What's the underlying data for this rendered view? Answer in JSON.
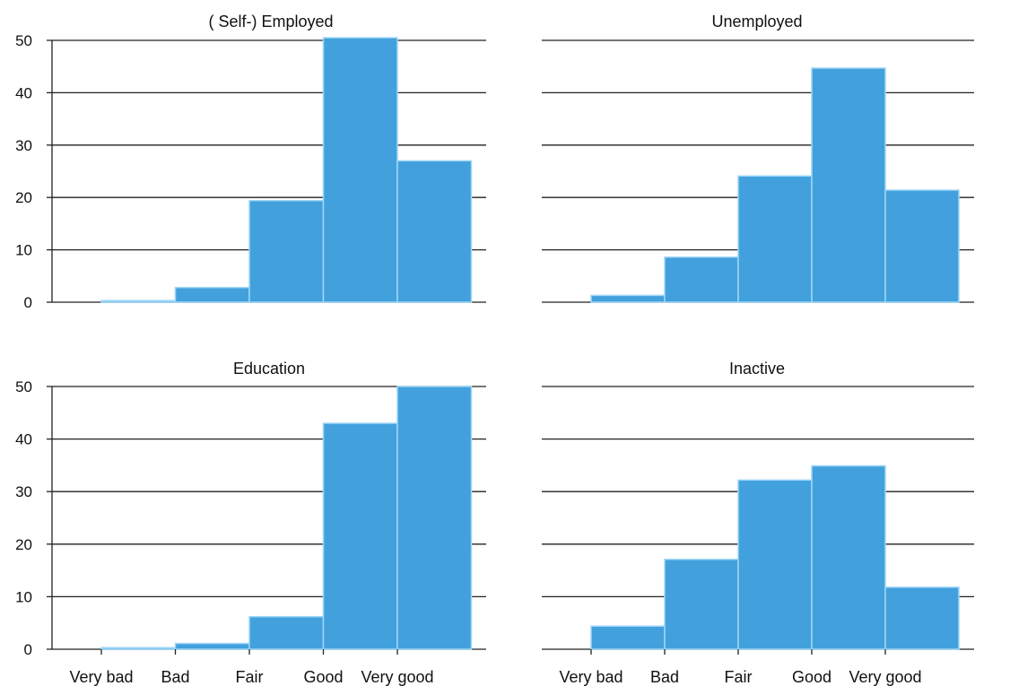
{
  "chart_data": [
    {
      "type": "bar",
      "title": "( Self-)  Employed",
      "categories": [
        "Very bad",
        "Bad",
        "Fair",
        "Good",
        "Very good"
      ],
      "values": [
        0.3,
        2.8,
        19.4,
        50.5,
        27.0
      ],
      "ylim": [
        0,
        50
      ],
      "yticks": [
        "0",
        "10",
        "20",
        "30",
        "40",
        "50"
      ],
      "grid": true,
      "color": "#42a1dd"
    },
    {
      "type": "bar",
      "title": "Unemployed",
      "categories": [
        "Very bad",
        "Bad",
        "Fair",
        "Good",
        "Very good"
      ],
      "values": [
        1.3,
        8.6,
        24.1,
        44.7,
        21.4
      ],
      "ylim": [
        0,
        50
      ],
      "yticks": [
        "0",
        "10",
        "20",
        "30",
        "40",
        "50"
      ],
      "grid": true,
      "color": "#42a1dd"
    },
    {
      "type": "bar",
      "title": "Education",
      "categories": [
        "Very bad",
        "Bad",
        "Fair",
        "Good",
        "Very good"
      ],
      "values": [
        0.3,
        1.1,
        6.2,
        43.0,
        50.0
      ],
      "ylim": [
        0,
        50
      ],
      "yticks": [
        "0",
        "10",
        "20",
        "30",
        "40",
        "50"
      ],
      "grid": true,
      "color": "#42a1dd"
    },
    {
      "type": "bar",
      "title": "Inactive",
      "categories": [
        "Very bad",
        "Bad",
        "Fair",
        "Good",
        "Very good"
      ],
      "values": [
        4.4,
        17.1,
        32.2,
        34.9,
        11.8
      ],
      "ylim": [
        0,
        50
      ],
      "yticks": [
        "0",
        "10",
        "20",
        "30",
        "40",
        "50"
      ],
      "grid": true,
      "color": "#42a1dd"
    }
  ]
}
